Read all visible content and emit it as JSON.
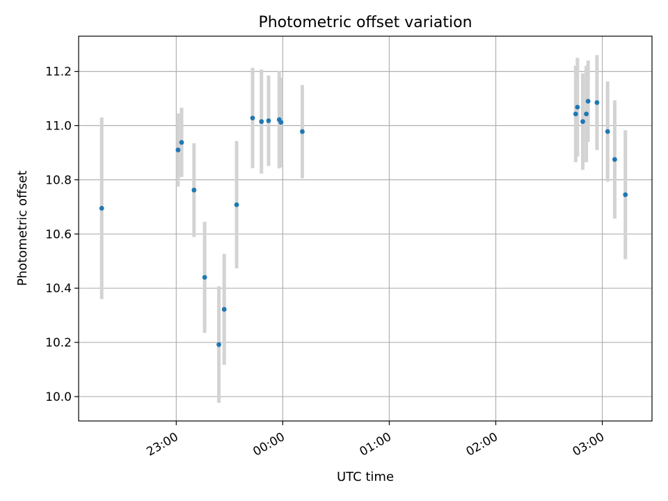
{
  "chart_data": {
    "type": "scatter",
    "title": "Photometric offset variation",
    "xlabel": "UTC time",
    "ylabel": "Photometric offset",
    "x_axis": {
      "kind": "time",
      "range": [
        "22:05",
        "03:28"
      ],
      "ticks": [
        "23:00",
        "00:00",
        "01:00",
        "02:00",
        "03:00"
      ]
    },
    "y_axis": {
      "range": [
        9.91,
        11.33
      ],
      "ticks": [
        "10.0",
        "10.2",
        "10.4",
        "10.6",
        "10.8",
        "11.0",
        "11.2"
      ]
    },
    "grid": true,
    "colors": {
      "marker": "#1f77b4",
      "errorbar": "#d3d3d3"
    },
    "points": [
      {
        "time": "22:18",
        "value": 10.695,
        "err": 0.335
      },
      {
        "time": "23:01",
        "value": 10.91,
        "err": 0.135
      },
      {
        "time": "23:03",
        "value": 10.938,
        "err": 0.128
      },
      {
        "time": "23:10",
        "value": 10.762,
        "err": 0.173
      },
      {
        "time": "23:16",
        "value": 10.44,
        "err": 0.205
      },
      {
        "time": "23:24",
        "value": 10.192,
        "err": 0.215
      },
      {
        "time": "23:27",
        "value": 10.322,
        "err": 0.205
      },
      {
        "time": "23:34",
        "value": 10.708,
        "err": 0.235
      },
      {
        "time": "23:43",
        "value": 11.028,
        "err": 0.185
      },
      {
        "time": "23:48",
        "value": 11.015,
        "err": 0.192
      },
      {
        "time": "23:52",
        "value": 11.018,
        "err": 0.167
      },
      {
        "time": "23:58",
        "value": 11.022,
        "err": 0.18
      },
      {
        "time": "23:59",
        "value": 11.012,
        "err": 0.165
      },
      {
        "time": "00:11",
        "value": 10.978,
        "err": 0.172
      },
      {
        "time": "02:45",
        "value": 11.043,
        "err": 0.178
      },
      {
        "time": "02:46",
        "value": 11.068,
        "err": 0.182
      },
      {
        "time": "02:49",
        "value": 11.015,
        "err": 0.178
      },
      {
        "time": "02:51",
        "value": 11.043,
        "err": 0.178
      },
      {
        "time": "02:52",
        "value": 11.09,
        "err": 0.15
      },
      {
        "time": "02:57",
        "value": 11.085,
        "err": 0.175
      },
      {
        "time": "03:03",
        "value": 10.978,
        "err": 0.185
      },
      {
        "time": "03:07",
        "value": 10.875,
        "err": 0.218
      },
      {
        "time": "03:13",
        "value": 10.745,
        "err": 0.238
      }
    ]
  }
}
